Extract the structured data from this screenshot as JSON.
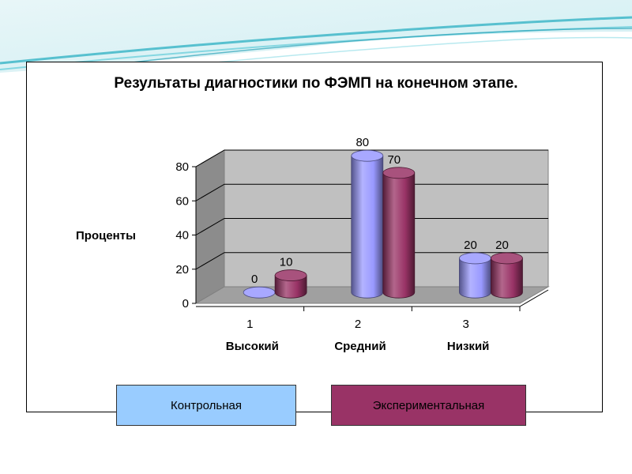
{
  "chart_data": {
    "type": "bar",
    "title": "Результаты  диагностики  по ФЭМП на конечном этапе.",
    "ylabel": "Проценты",
    "xlabel": "",
    "ylim": [
      0,
      80
    ],
    "yticks": [
      "0",
      "20",
      "40",
      "60",
      "80"
    ],
    "categories": [
      "1",
      "2",
      "3"
    ],
    "category_names": [
      "Высокий",
      "Средний",
      "Низкий"
    ],
    "series": [
      {
        "name": "Контрольная",
        "values": [
          0,
          80,
          20
        ],
        "color": "#9999ff"
      },
      {
        "name": "Экспериментальная",
        "values": [
          10,
          70,
          20
        ],
        "color": "#993366"
      }
    ],
    "grid": true,
    "three_d": true,
    "legend_position": "bottom"
  },
  "colors": {
    "wall": "#c0c0c0",
    "floor": "#a0a0a0",
    "banner_accent": "#3fb7c8"
  }
}
